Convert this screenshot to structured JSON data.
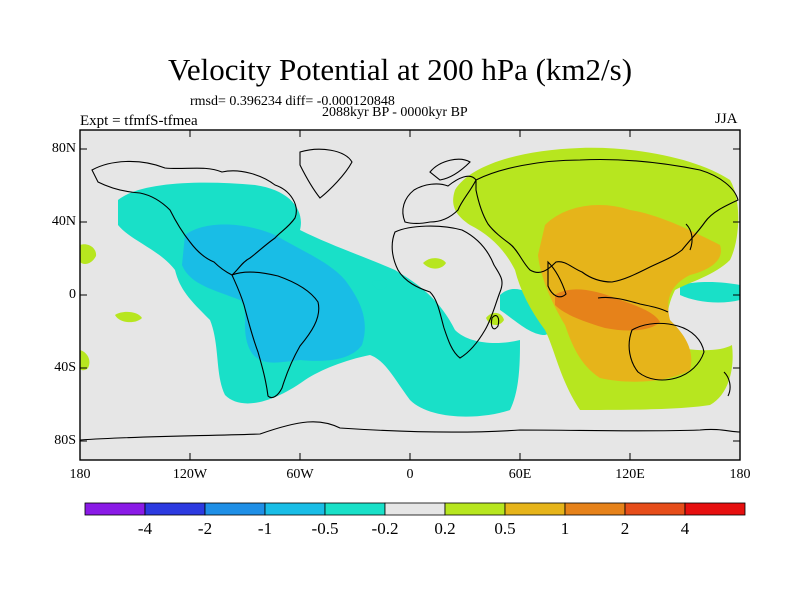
{
  "header": {
    "title": "Velocity Potential at 200 hPa (km2/s)",
    "stats": "rmsd= 0.396234 diff= -0.000120848",
    "subtitle": "2088kyr BP - 0000kyr BP",
    "expt": "Expt = tfmfS-tfmea",
    "season": "JJA"
  },
  "map": {
    "lat_ticks": [
      "80N",
      "40N",
      "0",
      "40S",
      "80S"
    ],
    "lon_ticks": [
      "180",
      "120W",
      "60W",
      "0",
      "60E",
      "120E",
      "180"
    ],
    "background_color": "#e6e6e6",
    "land_outline_color": "#000000"
  },
  "colorbar": {
    "labels": [
      "-4",
      "-2",
      "-1",
      "-0.5",
      "-0.2",
      "0.2",
      "0.5",
      "1",
      "2",
      "4"
    ],
    "colors": [
      "#8a1ae6",
      "#2c3ae0",
      "#1f8fe6",
      "#19bde6",
      "#19e0c8",
      "#e6e6e6",
      "#b7e61f",
      "#e6b41a",
      "#e6821a",
      "#e64d1a",
      "#e60f0f"
    ]
  }
}
